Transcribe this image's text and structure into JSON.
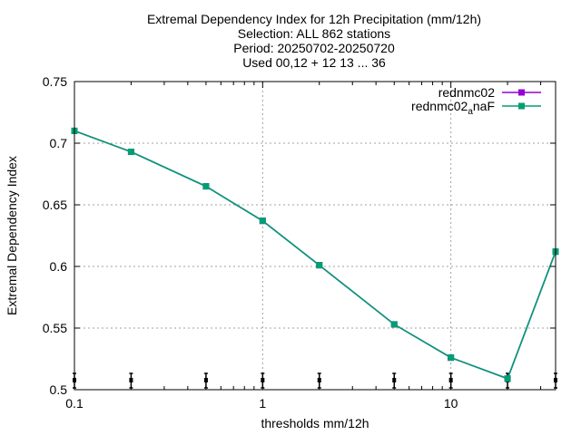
{
  "chart_data": {
    "type": "line",
    "title_lines": [
      "Extremal Dependency Index  for 12h Precipitation (mm/12h)",
      "Selection: ALL    862 stations",
      "Period: 20250702-20250720",
      "Used 00,12 + 12 13 ... 36"
    ],
    "xlabel": "thresholds mm/12h",
    "ylabel": "Extremal Dependency Index",
    "x_scale": "log",
    "xlim": [
      0.1,
      36
    ],
    "ylim": [
      0.5,
      0.75
    ],
    "x_ticks": [
      0.1,
      1,
      10
    ],
    "x_tick_labels": [
      "0.1",
      "1",
      "10"
    ],
    "y_ticks": [
      0.5,
      0.55,
      0.6,
      0.65,
      0.7,
      0.75
    ],
    "y_tick_labels": [
      "0.5",
      "0.55",
      "0.6",
      "0.65",
      "0.7",
      "0.75"
    ],
    "grid": true,
    "legend_position": "top-right",
    "x": [
      0.1,
      0.2,
      0.5,
      1,
      2,
      5,
      10,
      20,
      36
    ],
    "series": [
      {
        "name": "rednmc02",
        "color": "#9400d3",
        "values": [
          0.71,
          0.693,
          0.665,
          0.637,
          0.601,
          0.553,
          0.526,
          0.509,
          0.612
        ]
      },
      {
        "name_main": "rednmc02",
        "name_sub": "a",
        "name_tail": "naF",
        "color": "#009e73",
        "values": [
          0.71,
          0.693,
          0.665,
          0.637,
          0.601,
          0.553,
          0.526,
          0.509,
          0.612
        ]
      }
    ],
    "error_bar_color": "#000000"
  }
}
